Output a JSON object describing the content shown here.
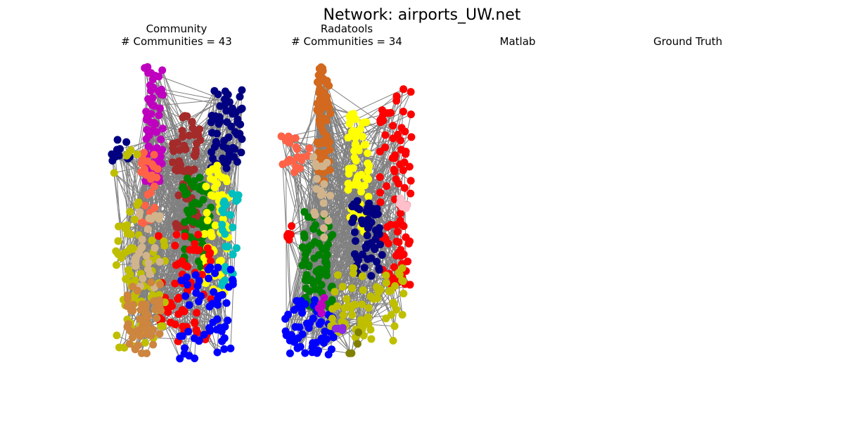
{
  "figure": {
    "title": "Network: airports_UW.net"
  },
  "panels": [
    {
      "title": "Community",
      "subtitle": "# Communities = 43"
    },
    {
      "title": "Radatools",
      "subtitle": "# Communities = 34"
    },
    {
      "title": "Matlab",
      "subtitle": ""
    },
    {
      "title": "Ground Truth",
      "subtitle": ""
    }
  ],
  "colors": {
    "edge": "#808080",
    "palette": [
      "#bf00bf",
      "#000080",
      "#a52a2a",
      "#008000",
      "#ffff00",
      "#00bfbf",
      "#ff0000",
      "#0000ff",
      "#bfbf00",
      "#ff6347",
      "#d2b48c",
      "#cd853f",
      "#d2691e",
      "#ffc0cb",
      "#808000",
      "#8a2be2"
    ]
  },
  "chart_data": [
    {
      "type": "network",
      "title": "Community",
      "subtitle": "# Communities = 43",
      "communities_reported": 43,
      "dominant_colors": [
        "#bf00bf",
        "#000080",
        "#a52a2a",
        "#008000",
        "#ffff00",
        "#00bfbf",
        "#ff0000",
        "#0000ff",
        "#bfbf00",
        "#ff6347",
        "#d2b48c",
        "#cd853f"
      ]
    },
    {
      "type": "network",
      "title": "Radatools",
      "subtitle": "# Communities = 34",
      "communities_reported": 34,
      "dominant_colors": [
        "#d2691e",
        "#ffff00",
        "#ff0000",
        "#000080",
        "#008000",
        "#0000ff",
        "#bfbf00",
        "#ff6347",
        "#ffc0cb",
        "#808000",
        "#8a2be2"
      ]
    },
    {
      "type": "network",
      "title": "Matlab",
      "subtitle": "",
      "empty": true
    },
    {
      "type": "network",
      "title": "Ground Truth",
      "subtitle": "",
      "empty": true
    }
  ]
}
